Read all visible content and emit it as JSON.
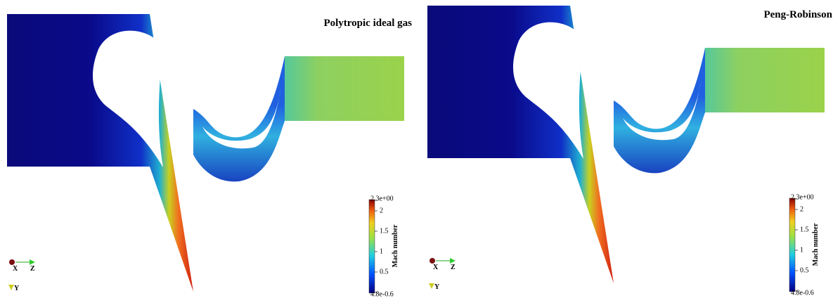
{
  "panels": [
    {
      "title": "Polytropic ideal gas",
      "colorbar": {
        "label": "Mach number",
        "ticks": [
          "2.3e+00",
          "2",
          "1.5",
          "1",
          "0.5",
          "4.8e-0.6"
        ]
      },
      "axes": {
        "x": "X",
        "z": "Z",
        "y": "Y"
      }
    },
    {
      "title": "Peng-Robinson",
      "colorbar": {
        "label": "Mach number",
        "ticks": [
          "2.3e+00",
          "2",
          "1.5",
          "1",
          "0.5",
          "4.8e-0.6"
        ]
      },
      "axes": {
        "x": "X",
        "z": "Z",
        "y": "Y"
      }
    }
  ]
}
